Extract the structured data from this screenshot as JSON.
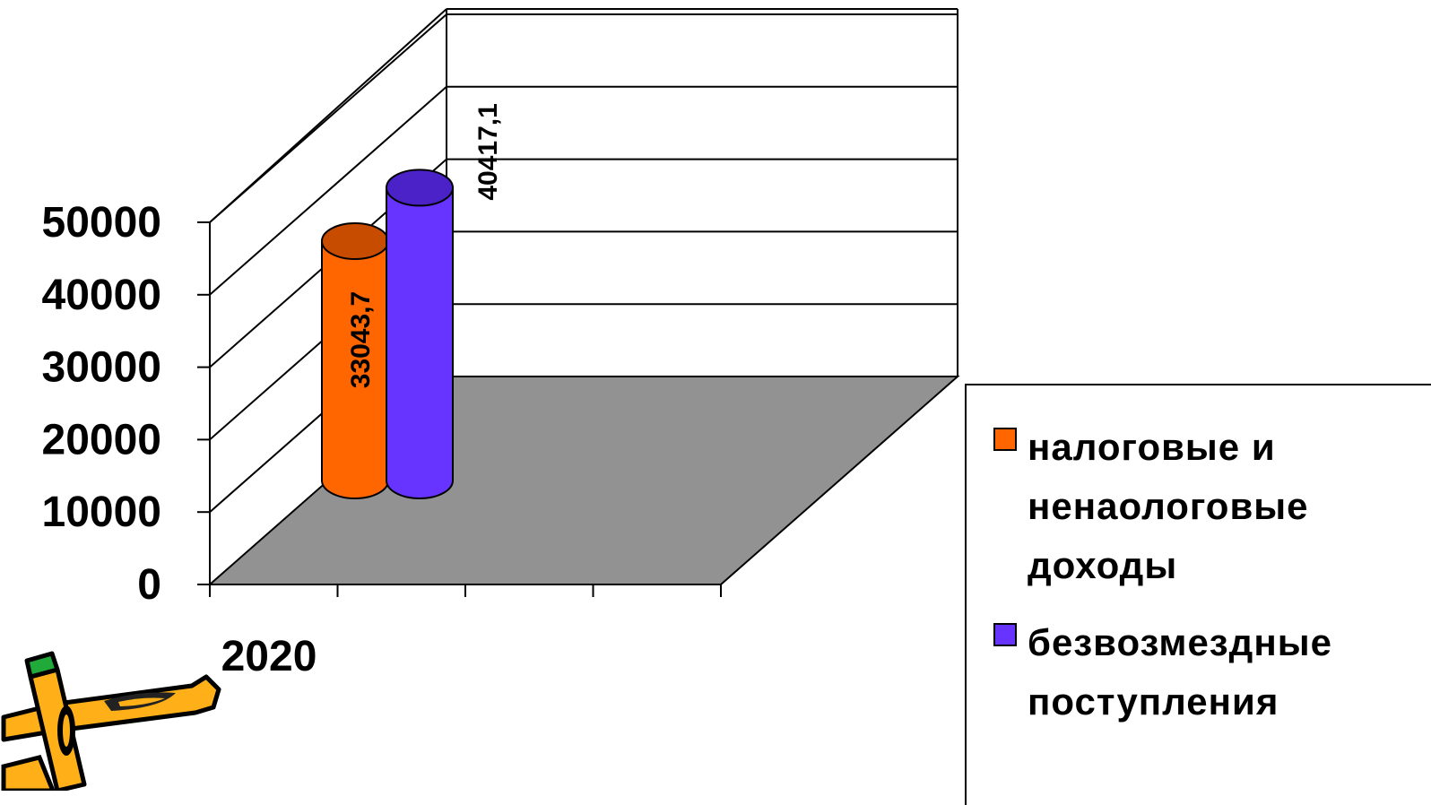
{
  "chart_data": {
    "type": "bar",
    "style": "3d-cylinder",
    "categories": [
      "2020"
    ],
    "series": [
      {
        "name": "налоговые и\nненаологовые\nдоходы",
        "values": [
          33043.7
        ],
        "label": "33043,7",
        "color": "#ff6600"
      },
      {
        "name": "безвозмездные\nпоступления",
        "values": [
          40417.1
        ],
        "label": "40417,1",
        "color": "#6633ff"
      }
    ],
    "ylim": [
      0,
      50000
    ],
    "yticks": [
      "0",
      "10000",
      "20000",
      "30000",
      "40000",
      "50000"
    ],
    "grid": true,
    "legend": "right",
    "floor_color": "#929292"
  }
}
